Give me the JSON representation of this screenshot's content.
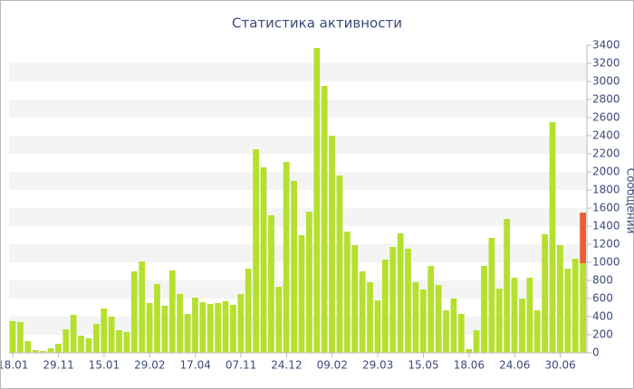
{
  "chart_data": {
    "type": "bar",
    "title": "Статистика активности",
    "y_label": "Сообщений",
    "categories": [
      "18.01",
      null,
      null,
      null,
      null,
      null,
      "29.11",
      null,
      null,
      null,
      null,
      null,
      "15.01",
      null,
      null,
      null,
      null,
      null,
      "29.02",
      null,
      null,
      null,
      null,
      null,
      "17.04",
      null,
      null,
      null,
      null,
      null,
      "07.11",
      null,
      null,
      null,
      null,
      null,
      "24.12",
      null,
      null,
      null,
      null,
      null,
      "09.02",
      null,
      null,
      null,
      null,
      null,
      "29.03",
      null,
      null,
      null,
      null,
      null,
      "15.05",
      null,
      null,
      null,
      null,
      null,
      "18.06",
      null,
      null,
      null,
      null,
      null,
      "24.06",
      null,
      null,
      null,
      null,
      null,
      "30.06",
      null,
      null,
      null
    ],
    "series": [
      {
        "color": "#b5e02f",
        "values": [
          350,
          340,
          130,
          30,
          20,
          50,
          100,
          260,
          420,
          190,
          160,
          320,
          490,
          400,
          250,
          230,
          900,
          1010,
          550,
          760,
          520,
          910,
          650,
          430,
          610,
          560,
          540,
          550,
          570,
          530,
          650,
          930,
          2250,
          2050,
          1520,
          730,
          2110,
          1900,
          1300,
          1560,
          3370,
          2950,
          2400,
          1960,
          1340,
          1190,
          900,
          780,
          580,
          1030,
          1170,
          1320,
          1150,
          780,
          700,
          960,
          750,
          470,
          600,
          430,
          40,
          250,
          960,
          1270,
          710,
          1480,
          830,
          600,
          830,
          470,
          1310,
          2550,
          1190,
          930,
          1040,
          990
        ]
      },
      {
        "color": "#ec5d36",
        "values": [
          null,
          null,
          null,
          null,
          null,
          null,
          null,
          null,
          null,
          null,
          null,
          null,
          null,
          null,
          null,
          null,
          null,
          null,
          null,
          null,
          null,
          null,
          null,
          null,
          null,
          null,
          null,
          null,
          null,
          null,
          null,
          null,
          null,
          null,
          null,
          null,
          null,
          null,
          null,
          null,
          null,
          null,
          null,
          null,
          null,
          null,
          null,
          null,
          null,
          null,
          null,
          null,
          null,
          null,
          null,
          null,
          null,
          null,
          null,
          null,
          null,
          null,
          null,
          null,
          null,
          null,
          null,
          null,
          null,
          null,
          null,
          null,
          null,
          null,
          null,
          560
        ]
      }
    ],
    "ylim": [
      0,
      3400
    ],
    "yticks": [
      0,
      200,
      400,
      600,
      800,
      1000,
      1200,
      1400,
      1600,
      1800,
      2000,
      2200,
      2400,
      2600,
      2800,
      3000,
      3200,
      3400
    ],
    "grid": true
  }
}
